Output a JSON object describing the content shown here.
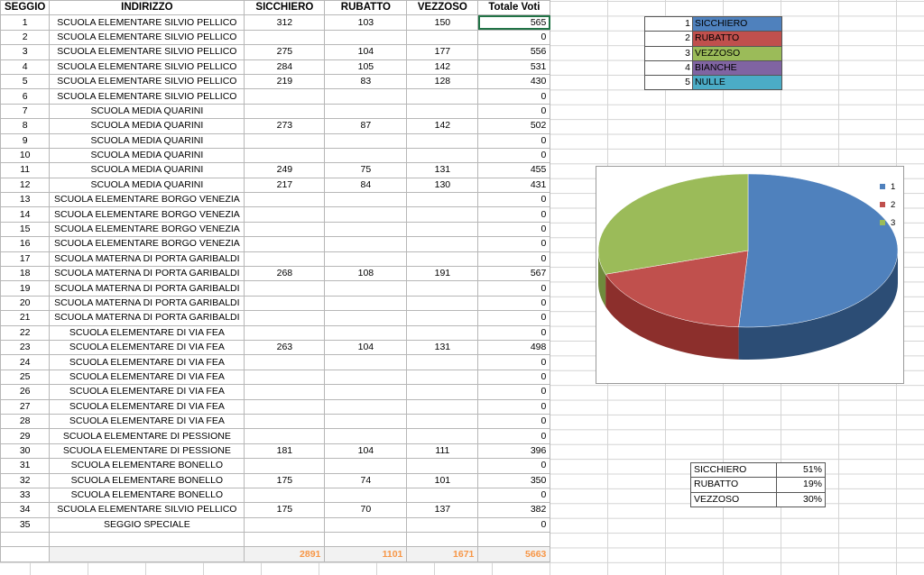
{
  "headers": {
    "seggio": "SEGGIO",
    "indirizzo": "INDIRIZZO",
    "sicchiero": "SICCHIERO",
    "rubatto": "RUBATTO",
    "vezzoso": "VEZZOSO",
    "totale": "Totale Voti"
  },
  "rows": [
    {
      "seggio": "1",
      "indirizzo": "SCUOLA ELEMENTARE SILVIO PELLICO",
      "sicchiero": "312",
      "rubatto": "103",
      "vezzoso": "150",
      "totale": "565"
    },
    {
      "seggio": "2",
      "indirizzo": "SCUOLA ELEMENTARE SILVIO PELLICO",
      "sicchiero": "",
      "rubatto": "",
      "vezzoso": "",
      "totale": "0"
    },
    {
      "seggio": "3",
      "indirizzo": "SCUOLA ELEMENTARE SILVIO PELLICO",
      "sicchiero": "275",
      "rubatto": "104",
      "vezzoso": "177",
      "totale": "556"
    },
    {
      "seggio": "4",
      "indirizzo": "SCUOLA ELEMENTARE SILVIO PELLICO",
      "sicchiero": "284",
      "rubatto": "105",
      "vezzoso": "142",
      "totale": "531"
    },
    {
      "seggio": "5",
      "indirizzo": "SCUOLA ELEMENTARE SILVIO PELLICO",
      "sicchiero": "219",
      "rubatto": "83",
      "vezzoso": "128",
      "totale": "430"
    },
    {
      "seggio": "6",
      "indirizzo": "SCUOLA ELEMENTARE SILVIO PELLICO",
      "sicchiero": "",
      "rubatto": "",
      "vezzoso": "",
      "totale": "0"
    },
    {
      "seggio": "7",
      "indirizzo": "SCUOLA MEDIA QUARINI",
      "sicchiero": "",
      "rubatto": "",
      "vezzoso": "",
      "totale": "0"
    },
    {
      "seggio": "8",
      "indirizzo": "SCUOLA MEDIA QUARINI",
      "sicchiero": "273",
      "rubatto": "87",
      "vezzoso": "142",
      "totale": "502"
    },
    {
      "seggio": "9",
      "indirizzo": "SCUOLA MEDIA QUARINI",
      "sicchiero": "",
      "rubatto": "",
      "vezzoso": "",
      "totale": "0"
    },
    {
      "seggio": "10",
      "indirizzo": "SCUOLA MEDIA QUARINI",
      "sicchiero": "",
      "rubatto": "",
      "vezzoso": "",
      "totale": "0"
    },
    {
      "seggio": "11",
      "indirizzo": "SCUOLA MEDIA QUARINI",
      "sicchiero": "249",
      "rubatto": "75",
      "vezzoso": "131",
      "totale": "455"
    },
    {
      "seggio": "12",
      "indirizzo": "SCUOLA MEDIA QUARINI",
      "sicchiero": "217",
      "rubatto": "84",
      "vezzoso": "130",
      "totale": "431"
    },
    {
      "seggio": "13",
      "indirizzo": "SCUOLA ELEMENTARE BORGO VENEZIA",
      "sicchiero": "",
      "rubatto": "",
      "vezzoso": "",
      "totale": "0"
    },
    {
      "seggio": "14",
      "indirizzo": "SCUOLA ELEMENTARE BORGO VENEZIA",
      "sicchiero": "",
      "rubatto": "",
      "vezzoso": "",
      "totale": "0"
    },
    {
      "seggio": "15",
      "indirizzo": "SCUOLA ELEMENTARE BORGO VENEZIA",
      "sicchiero": "",
      "rubatto": "",
      "vezzoso": "",
      "totale": "0"
    },
    {
      "seggio": "16",
      "indirizzo": "SCUOLA ELEMENTARE BORGO VENEZIA",
      "sicchiero": "",
      "rubatto": "",
      "vezzoso": "",
      "totale": "0"
    },
    {
      "seggio": "17",
      "indirizzo": "SCUOLA MATERNA DI PORTA GARIBALDI",
      "sicchiero": "",
      "rubatto": "",
      "vezzoso": "",
      "totale": "0"
    },
    {
      "seggio": "18",
      "indirizzo": "SCUOLA MATERNA DI PORTA GARIBALDI",
      "sicchiero": "268",
      "rubatto": "108",
      "vezzoso": "191",
      "totale": "567"
    },
    {
      "seggio": "19",
      "indirizzo": "SCUOLA MATERNA DI PORTA GARIBALDI",
      "sicchiero": "",
      "rubatto": "",
      "vezzoso": "",
      "totale": "0"
    },
    {
      "seggio": "20",
      "indirizzo": "SCUOLA MATERNA DI PORTA GARIBALDI",
      "sicchiero": "",
      "rubatto": "",
      "vezzoso": "",
      "totale": "0"
    },
    {
      "seggio": "21",
      "indirizzo": "SCUOLA MATERNA DI PORTA GARIBALDI",
      "sicchiero": "",
      "rubatto": "",
      "vezzoso": "",
      "totale": "0"
    },
    {
      "seggio": "22",
      "indirizzo": "SCUOLA ELEMENTARE DI VIA FEA",
      "sicchiero": "",
      "rubatto": "",
      "vezzoso": "",
      "totale": "0"
    },
    {
      "seggio": "23",
      "indirizzo": "SCUOLA ELEMENTARE DI VIA FEA",
      "sicchiero": "263",
      "rubatto": "104",
      "vezzoso": "131",
      "totale": "498"
    },
    {
      "seggio": "24",
      "indirizzo": "SCUOLA ELEMENTARE DI VIA FEA",
      "sicchiero": "",
      "rubatto": "",
      "vezzoso": "",
      "totale": "0"
    },
    {
      "seggio": "25",
      "indirizzo": "SCUOLA ELEMENTARE DI VIA FEA",
      "sicchiero": "",
      "rubatto": "",
      "vezzoso": "",
      "totale": "0"
    },
    {
      "seggio": "26",
      "indirizzo": "SCUOLA ELEMENTARE DI VIA FEA",
      "sicchiero": "",
      "rubatto": "",
      "vezzoso": "",
      "totale": "0"
    },
    {
      "seggio": "27",
      "indirizzo": "SCUOLA ELEMENTARE DI VIA FEA",
      "sicchiero": "",
      "rubatto": "",
      "vezzoso": "",
      "totale": "0"
    },
    {
      "seggio": "28",
      "indirizzo": "SCUOLA ELEMENTARE DI VIA FEA",
      "sicchiero": "",
      "rubatto": "",
      "vezzoso": "",
      "totale": "0"
    },
    {
      "seggio": "29",
      "indirizzo": "SCUOLA ELEMENTARE DI PESSIONE",
      "sicchiero": "",
      "rubatto": "",
      "vezzoso": "",
      "totale": "0"
    },
    {
      "seggio": "30",
      "indirizzo": "SCUOLA ELEMENTARE DI PESSIONE",
      "sicchiero": "181",
      "rubatto": "104",
      "vezzoso": "111",
      "totale": "396"
    },
    {
      "seggio": "31",
      "indirizzo": "SCUOLA ELEMENTARE BONELLO",
      "sicchiero": "",
      "rubatto": "",
      "vezzoso": "",
      "totale": "0"
    },
    {
      "seggio": "32",
      "indirizzo": "SCUOLA ELEMENTARE BONELLO",
      "sicchiero": "175",
      "rubatto": "74",
      "vezzoso": "101",
      "totale": "350"
    },
    {
      "seggio": "33",
      "indirizzo": "SCUOLA ELEMENTARE BONELLO",
      "sicchiero": "",
      "rubatto": "",
      "vezzoso": "",
      "totale": "0"
    },
    {
      "seggio": "34",
      "indirizzo": "SCUOLA ELEMENTARE SILVIO PELLICO",
      "sicchiero": "175",
      "rubatto": "70",
      "vezzoso": "137",
      "totale": "382"
    },
    {
      "seggio": "35",
      "indirizzo": "SEGGIO SPECIALE",
      "sicchiero": "",
      "rubatto": "",
      "vezzoso": "",
      "totale": "0"
    }
  ],
  "totals": {
    "sicchiero": "2891",
    "rubatto": "1101",
    "vezzoso": "1671",
    "totale": "5663"
  },
  "legend_table": [
    {
      "num": "1",
      "label": "SICCHIERO",
      "color": "#4f81bd"
    },
    {
      "num": "2",
      "label": "RUBATTO",
      "color": "#c0504d"
    },
    {
      "num": "3",
      "label": "VEZZOSO",
      "color": "#9bbb59"
    },
    {
      "num": "4",
      "label": "BIANCHE",
      "color": "#8064a2"
    },
    {
      "num": "5",
      "label": "NULLE",
      "color": "#4bacc6"
    }
  ],
  "percent_table": [
    {
      "name": "SICCHIERO",
      "value": "51%"
    },
    {
      "name": "RUBATTO",
      "value": "19%"
    },
    {
      "name": "VEZZOSO",
      "value": "30%"
    }
  ],
  "chart_data": {
    "type": "pie",
    "categories": [
      "1",
      "2",
      "3"
    ],
    "values": [
      51,
      19,
      30
    ],
    "colors": [
      "#4f81bd",
      "#c0504d",
      "#9bbb59"
    ],
    "side_colors": [
      "#2c4d75",
      "#8c2f2c",
      "#6f8a3c"
    ],
    "legend_position": "top-right",
    "three_d": true
  }
}
